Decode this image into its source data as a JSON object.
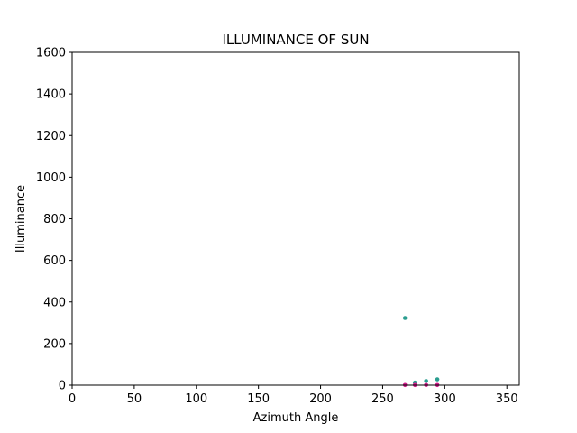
{
  "chart_data": {
    "type": "scatter",
    "title": "ILLUMINANCE OF SUN",
    "xlabel": "Azimuth Angle",
    "ylabel": "Illuminance",
    "xlim": [
      0,
      360
    ],
    "ylim": [
      0,
      1600
    ],
    "xticks": [
      0,
      50,
      100,
      150,
      200,
      250,
      300,
      350
    ],
    "yticks": [
      0,
      200,
      400,
      600,
      800,
      1000,
      1200,
      1400,
      1600
    ],
    "grid": false,
    "legend": "none",
    "series": [
      {
        "color": "#2a9d8f",
        "points": [
          {
            "x": 268,
            "y": 323
          },
          {
            "x": 276,
            "y": 12
          },
          {
            "x": 285,
            "y": 20
          },
          {
            "x": 294,
            "y": 28
          }
        ]
      },
      {
        "color": "#d01c8b",
        "points": [
          {
            "x": 268,
            "y": 1
          },
          {
            "x": 276,
            "y": 1
          },
          {
            "x": 285,
            "y": 1
          },
          {
            "x": 294,
            "y": 1
          }
        ]
      }
    ]
  }
}
